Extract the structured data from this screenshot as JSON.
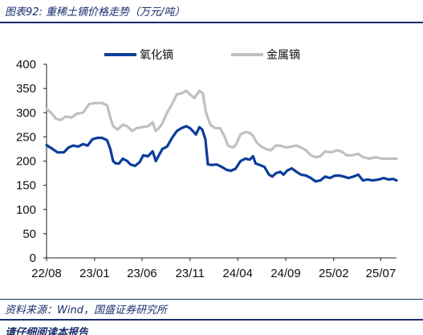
{
  "figure": {
    "title": "图表92:  重稀土镝价格走势（万元/吨）",
    "source": "资料来源：Wind，国盛证券研究所",
    "footer_partial": "请仔细阅读本报告"
  },
  "colors": {
    "accent_navy": "#1a2e6e",
    "series_dark": "#0a3d9c",
    "series_light": "#c0c0c0"
  },
  "chart_data": {
    "type": "line",
    "title": "",
    "xlabel": "",
    "ylabel": "",
    "ylim": [
      0,
      400
    ],
    "yticks": [
      0,
      50,
      100,
      150,
      200,
      250,
      300,
      350,
      400
    ],
    "xlim": [
      "2022-08-01",
      "2025-08-20"
    ],
    "xticks": [
      {
        "label": "22/08",
        "date": "2022-08-01"
      },
      {
        "label": "23/01",
        "date": "2023-01-01"
      },
      {
        "label": "23/06",
        "date": "2023-06-01"
      },
      {
        "label": "23/11",
        "date": "2023-11-01"
      },
      {
        "label": "24/04",
        "date": "2024-04-01"
      },
      {
        "label": "24/09",
        "date": "2024-09-01"
      },
      {
        "label": "25/02",
        "date": "2025-02-01"
      },
      {
        "label": "25/07",
        "date": "2025-07-01"
      }
    ],
    "grid": false,
    "legend_position": "top-center",
    "series": [
      {
        "name": "氧化镝",
        "color": "#0a3d9c",
        "points": [
          [
            "2022-08-01",
            233
          ],
          [
            "2022-08-20",
            225
          ],
          [
            "2022-09-05",
            218
          ],
          [
            "2022-09-25",
            218
          ],
          [
            "2022-10-10",
            228
          ],
          [
            "2022-10-25",
            232
          ],
          [
            "2022-11-10",
            230
          ],
          [
            "2022-11-25",
            235
          ],
          [
            "2022-12-10",
            232
          ],
          [
            "2022-12-25",
            245
          ],
          [
            "2023-01-10",
            248
          ],
          [
            "2023-01-25",
            248
          ],
          [
            "2023-02-10",
            243
          ],
          [
            "2023-02-20",
            225
          ],
          [
            "2023-03-01",
            200
          ],
          [
            "2023-03-10",
            195
          ],
          [
            "2023-03-20",
            195
          ],
          [
            "2023-04-01",
            205
          ],
          [
            "2023-04-15",
            200
          ],
          [
            "2023-04-25",
            193
          ],
          [
            "2023-05-10",
            190
          ],
          [
            "2023-05-25",
            198
          ],
          [
            "2023-06-05",
            212
          ],
          [
            "2023-06-20",
            210
          ],
          [
            "2023-07-05",
            220
          ],
          [
            "2023-07-15",
            200
          ],
          [
            "2023-07-25",
            212
          ],
          [
            "2023-08-05",
            225
          ],
          [
            "2023-08-20",
            230
          ],
          [
            "2023-09-05",
            248
          ],
          [
            "2023-09-20",
            262
          ],
          [
            "2023-10-05",
            268
          ],
          [
            "2023-10-20",
            272
          ],
          [
            "2023-11-01",
            268
          ],
          [
            "2023-11-10",
            262
          ],
          [
            "2023-11-20",
            255
          ],
          [
            "2023-12-01",
            270
          ],
          [
            "2023-12-10",
            265
          ],
          [
            "2023-12-20",
            245
          ],
          [
            "2023-12-28",
            193
          ],
          [
            "2024-01-10",
            192
          ],
          [
            "2024-01-25",
            193
          ],
          [
            "2024-02-10",
            188
          ],
          [
            "2024-02-25",
            182
          ],
          [
            "2024-03-10",
            180
          ],
          [
            "2024-03-25",
            184
          ],
          [
            "2024-04-10",
            200
          ],
          [
            "2024-04-25",
            205
          ],
          [
            "2024-05-10",
            203
          ],
          [
            "2024-05-20",
            210
          ],
          [
            "2024-05-28",
            195
          ],
          [
            "2024-06-10",
            192
          ],
          [
            "2024-06-25",
            188
          ],
          [
            "2024-07-10",
            172
          ],
          [
            "2024-07-20",
            168
          ],
          [
            "2024-08-01",
            175
          ],
          [
            "2024-08-15",
            178
          ],
          [
            "2024-08-25",
            172
          ],
          [
            "2024-09-05",
            180
          ],
          [
            "2024-09-20",
            185
          ],
          [
            "2024-10-05",
            178
          ],
          [
            "2024-10-20",
            172
          ],
          [
            "2024-11-05",
            170
          ],
          [
            "2024-11-20",
            165
          ],
          [
            "2024-12-05",
            158
          ],
          [
            "2024-12-20",
            160
          ],
          [
            "2025-01-05",
            168
          ],
          [
            "2025-01-20",
            165
          ],
          [
            "2025-02-05",
            170
          ],
          [
            "2025-02-20",
            170
          ],
          [
            "2025-03-05",
            168
          ],
          [
            "2025-03-20",
            165
          ],
          [
            "2025-04-05",
            168
          ],
          [
            "2025-04-20",
            172
          ],
          [
            "2025-05-05",
            160
          ],
          [
            "2025-05-20",
            162
          ],
          [
            "2025-06-05",
            160
          ],
          [
            "2025-06-25",
            162
          ],
          [
            "2025-07-10",
            165
          ],
          [
            "2025-07-25",
            162
          ],
          [
            "2025-08-10",
            163
          ],
          [
            "2025-08-20",
            160
          ]
        ]
      },
      {
        "name": "金属镝",
        "color": "#c0c0c0",
        "points": [
          [
            "2022-08-01",
            308
          ],
          [
            "2022-08-15",
            300
          ],
          [
            "2022-09-01",
            287
          ],
          [
            "2022-09-15",
            285
          ],
          [
            "2022-10-01",
            292
          ],
          [
            "2022-10-20",
            290
          ],
          [
            "2022-11-05",
            298
          ],
          [
            "2022-11-25",
            300
          ],
          [
            "2022-12-15",
            318
          ],
          [
            "2023-01-05",
            320
          ],
          [
            "2023-01-25",
            320
          ],
          [
            "2023-02-10",
            315
          ],
          [
            "2023-02-20",
            290
          ],
          [
            "2023-03-01",
            272
          ],
          [
            "2023-03-15",
            265
          ],
          [
            "2023-04-01",
            275
          ],
          [
            "2023-04-15",
            272
          ],
          [
            "2023-05-01",
            262
          ],
          [
            "2023-05-15",
            268
          ],
          [
            "2023-06-01",
            270
          ],
          [
            "2023-06-20",
            272
          ],
          [
            "2023-07-05",
            280
          ],
          [
            "2023-07-15",
            262
          ],
          [
            "2023-07-25",
            268
          ],
          [
            "2023-08-05",
            278
          ],
          [
            "2023-08-20",
            300
          ],
          [
            "2023-09-05",
            318
          ],
          [
            "2023-09-20",
            338
          ],
          [
            "2023-10-05",
            340
          ],
          [
            "2023-10-20",
            345
          ],
          [
            "2023-11-01",
            338
          ],
          [
            "2023-11-15",
            330
          ],
          [
            "2023-12-01",
            345
          ],
          [
            "2023-12-12",
            340
          ],
          [
            "2023-12-22",
            300
          ],
          [
            "2024-01-05",
            275
          ],
          [
            "2024-01-20",
            268
          ],
          [
            "2024-02-05",
            268
          ],
          [
            "2024-02-20",
            250
          ],
          [
            "2024-03-01",
            232
          ],
          [
            "2024-03-15",
            228
          ],
          [
            "2024-03-25",
            232
          ],
          [
            "2024-04-10",
            255
          ],
          [
            "2024-04-25",
            260
          ],
          [
            "2024-05-10",
            258
          ],
          [
            "2024-05-20",
            252
          ],
          [
            "2024-06-01",
            238
          ],
          [
            "2024-06-15",
            230
          ],
          [
            "2024-06-30",
            225
          ],
          [
            "2024-07-15",
            222
          ],
          [
            "2024-08-01",
            232
          ],
          [
            "2024-08-15",
            232
          ],
          [
            "2024-09-01",
            228
          ],
          [
            "2024-09-20",
            230
          ],
          [
            "2024-10-05",
            232
          ],
          [
            "2024-10-20",
            228
          ],
          [
            "2024-11-05",
            222
          ],
          [
            "2024-11-20",
            212
          ],
          [
            "2024-12-05",
            208
          ],
          [
            "2024-12-20",
            210
          ],
          [
            "2025-01-05",
            220
          ],
          [
            "2025-01-25",
            218
          ],
          [
            "2025-02-10",
            222
          ],
          [
            "2025-02-25",
            220
          ],
          [
            "2025-03-15",
            212
          ],
          [
            "2025-04-01",
            212
          ],
          [
            "2025-04-20",
            215
          ],
          [
            "2025-05-05",
            208
          ],
          [
            "2025-05-25",
            205
          ],
          [
            "2025-06-15",
            208
          ],
          [
            "2025-07-05",
            205
          ],
          [
            "2025-07-25",
            205
          ],
          [
            "2025-08-20",
            205
          ]
        ]
      }
    ]
  }
}
